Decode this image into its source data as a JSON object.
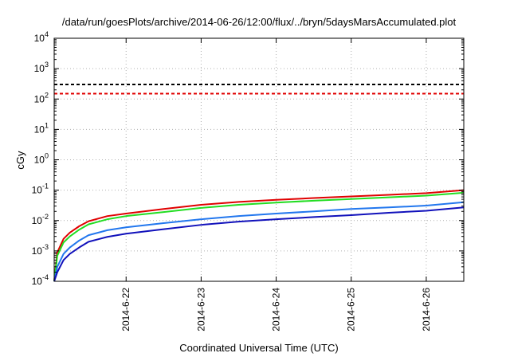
{
  "chart_data": {
    "type": "line",
    "title": "/data/run/goesPlots/archive/2014-06-26/12:00/flux/../bryn/5daysMarsAccumulated.plot",
    "xlabel": "Coordinated Universal Time (UTC)",
    "ylabel": "cGy",
    "yscale": "log",
    "ylim": [
      0.0001,
      10000
    ],
    "xlim": [
      "2014-06-21 01:00",
      "2014-06-26 12:00"
    ],
    "x_ticks": [
      "2014-6-22",
      "2014-6-23",
      "2014-6-24",
      "2014-6-25",
      "2014-6-26"
    ],
    "y_ticks": [
      {
        "base": "10",
        "exp": "-4"
      },
      {
        "base": "10",
        "exp": "-3"
      },
      {
        "base": "10",
        "exp": "-2"
      },
      {
        "base": "10",
        "exp": "-1"
      },
      {
        "base": "10",
        "exp": "0"
      },
      {
        "base": "10",
        "exp": "1"
      },
      {
        "base": "10",
        "exp": "2"
      },
      {
        "base": "10",
        "exp": "3"
      },
      {
        "base": "10",
        "exp": "4"
      }
    ],
    "grid": true,
    "reference_lines": [
      {
        "value": 300,
        "color": "#000000",
        "style": "dashed"
      },
      {
        "value": 150,
        "color": "#e00000",
        "style": "dashed"
      }
    ],
    "x": [
      "2014-06-21 01:00",
      "2014-06-21 02:00",
      "2014-06-21 04:00",
      "2014-06-21 06:00",
      "2014-06-21 09:00",
      "2014-06-21 12:00",
      "2014-06-21 18:00",
      "2014-06-22 00:00",
      "2014-06-22 12:00",
      "2014-06-23 00:00",
      "2014-06-23 12:00",
      "2014-06-24 00:00",
      "2014-06-24 12:00",
      "2014-06-25 00:00",
      "2014-06-25 12:00",
      "2014-06-26 00:00",
      "2014-06-26 12:00"
    ],
    "series": [
      {
        "color": "#e00000",
        "values": [
          0.0001,
          0.0009,
          0.0025,
          0.004,
          0.0065,
          0.0095,
          0.014,
          0.017,
          0.024,
          0.033,
          0.041,
          0.048,
          0.055,
          0.062,
          0.07,
          0.08,
          0.1
        ]
      },
      {
        "color": "#22dd22",
        "values": [
          0.0001,
          0.0007,
          0.0019,
          0.003,
          0.005,
          0.0075,
          0.011,
          0.014,
          0.019,
          0.026,
          0.033,
          0.039,
          0.045,
          0.051,
          0.058,
          0.066,
          0.082
        ]
      },
      {
        "color": "#2277ee",
        "values": [
          0.0001,
          0.0003,
          0.0008,
          0.0013,
          0.0022,
          0.0033,
          0.0048,
          0.006,
          0.0082,
          0.011,
          0.014,
          0.017,
          0.02,
          0.024,
          0.027,
          0.031,
          0.04
        ]
      },
      {
        "color": "#1111bb",
        "values": [
          0.0001,
          0.0002,
          0.0005,
          0.0008,
          0.0013,
          0.002,
          0.0029,
          0.0037,
          0.0052,
          0.0072,
          0.0092,
          0.011,
          0.013,
          0.015,
          0.018,
          0.021,
          0.027
        ]
      }
    ]
  }
}
